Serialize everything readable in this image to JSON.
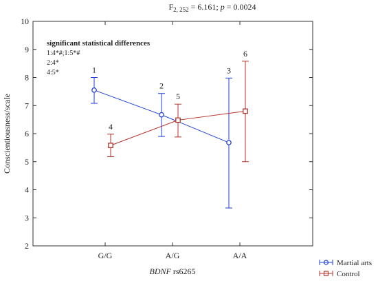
{
  "chart_data": {
    "type": "line",
    "title_prefix": "F",
    "title_sub": "2, 252",
    "title_rest": " = 6.161; ",
    "title_p_label": "p",
    "title_p_value": " = 0.0024",
    "xlabel_italic": "BDNF",
    "xlabel_rest": " rs6265",
    "ylabel": "Conscientiousness/scale",
    "categories": [
      "G/G",
      "A/G",
      "A/A"
    ],
    "ylim": [
      2,
      10
    ],
    "yticks": [
      2,
      3,
      4,
      5,
      6,
      7,
      8,
      9,
      10
    ],
    "grid": false,
    "legend_position": "bottom-right",
    "annotations": {
      "title": "significant statistical differences",
      "lines": [
        "1:4*#;1:5*#",
        "2:4*",
        "4:5*"
      ]
    },
    "series": [
      {
        "name": "Martial arts",
        "color": "#1f3fd8",
        "marker": "circle",
        "values": [
          7.55,
          6.67,
          5.68
        ],
        "ci_low": [
          7.08,
          5.9,
          3.35
        ],
        "ci_high": [
          8.0,
          7.43,
          7.98
        ],
        "point_labels": [
          "1",
          "2",
          "3"
        ]
      },
      {
        "name": "Control",
        "color": "#b5332a",
        "marker": "square",
        "values": [
          5.58,
          6.48,
          6.8
        ],
        "ci_low": [
          5.18,
          5.88,
          5.0
        ],
        "ci_high": [
          5.98,
          7.05,
          8.58
        ],
        "point_labels": [
          "4",
          "5",
          "6"
        ]
      }
    ]
  }
}
